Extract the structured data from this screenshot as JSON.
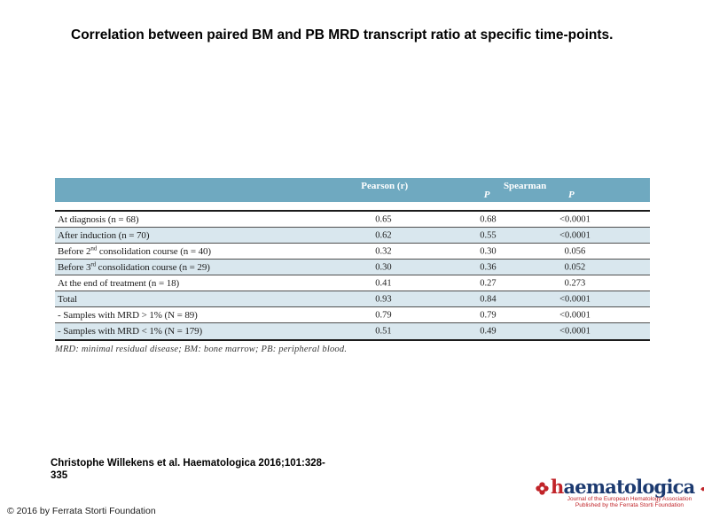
{
  "slide": {
    "title": "Correlation between paired BM and PB MRD transcript ratio at specific time-points.",
    "citation_line1": "Christophe Willekens et al. Haematologica 2016;101:328-",
    "citation_line2": "335",
    "copyright": "© 2016 by Ferrata Storti Foundation"
  },
  "table": {
    "header": {
      "pearson": "Pearson (r)",
      "spearman": "Spearman",
      "p1": "P",
      "p2": "P"
    },
    "rows": [
      {
        "label": "At diagnosis (n = 68)",
        "sup": "",
        "label2": "",
        "values": [
          "0.65",
          "0.68",
          "<0.0001"
        ]
      },
      {
        "label": "After induction (n = 70)",
        "sup": "",
        "label2": "",
        "values": [
          "0.62",
          "0.55",
          "<0.0001"
        ]
      },
      {
        "label": "Before 2",
        "sup": "nd",
        "label2": " consolidation course (n = 40)",
        "values": [
          "0.32",
          "0.30",
          "0.056"
        ]
      },
      {
        "label": "Before 3",
        "sup": "rd",
        "label2": " consolidation course (n = 29)",
        "values": [
          "0.30",
          "0.36",
          "0.052"
        ]
      },
      {
        "label": "At the end of treatment (n = 18)",
        "sup": "",
        "label2": "",
        "values": [
          "0.41",
          "0.27",
          "0.273"
        ]
      },
      {
        "label": "Total",
        "sup": "",
        "label2": "",
        "values": [
          "0.93",
          "0.84",
          "<0.0001"
        ]
      },
      {
        "label": "- Samples with MRD > 1% (N = 89)",
        "sup": "",
        "label2": "",
        "values": [
          "0.79",
          "0.79",
          "<0.0001"
        ]
      },
      {
        "label": "- Samples with MRD < 1% (N = 179)",
        "sup": "",
        "label2": "",
        "values": [
          "0.51",
          "0.49",
          "<0.0001"
        ]
      }
    ],
    "footnote": "MRD: minimal residual disease; BM: bone marrow; PB: peripheral blood."
  },
  "logo": {
    "brand_first_letter": "h",
    "brand_rest": "aematologica",
    "tagline_line1": "Journal of the European Hematology Association",
    "tagline_line2": "Published by the Ferrata Storti Foundation"
  },
  "colors": {
    "header_teal": "#6fa9c0",
    "row_shade": "#d9e7ee",
    "logo_navy": "#1c3a70",
    "logo_red": "#c12429"
  }
}
